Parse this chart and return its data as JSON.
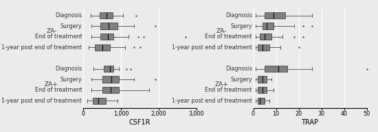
{
  "left_title": "CSF1R",
  "right_title": "TRAP",
  "left_xlim": [
    0,
    3000
  ],
  "left_xticks": [
    0,
    1000,
    2000,
    3000
  ],
  "left_xticklabels": [
    "0",
    "1,000",
    "2,000",
    "3,000"
  ],
  "right_xlim": [
    0,
    50
  ],
  "right_xticks": [
    0,
    10,
    20,
    30,
    40,
    50
  ],
  "right_xticklabels": [
    "0",
    "10",
    "20",
    "30",
    "40",
    "50"
  ],
  "timepoints": [
    "Diagnosis",
    "Surgery",
    "End of treatment",
    "1-year post end of treatment"
  ],
  "left_boxes": [
    {
      "q1": 430,
      "med": 620,
      "q3": 780,
      "whislo": 200,
      "whishi": 1050,
      "fliers": [
        1400
      ]
    },
    {
      "q1": 450,
      "med": 680,
      "q3": 900,
      "whislo": 220,
      "whishi": 1350,
      "fliers": [
        1900
      ]
    },
    {
      "q1": 450,
      "med": 650,
      "q3": 800,
      "whislo": 220,
      "whishi": 1200,
      "fliers": [
        1450,
        1600,
        2700
      ]
    },
    {
      "q1": 300,
      "med": 500,
      "q3": 700,
      "whislo": 150,
      "whishi": 1100,
      "fliers": [
        1350,
        1500
      ]
    },
    {
      "q1": 550,
      "med": 700,
      "q3": 800,
      "whislo": 280,
      "whishi": 950,
      "fliers": [
        1150,
        1250
      ]
    },
    {
      "q1": 500,
      "med": 750,
      "q3": 950,
      "whislo": 220,
      "whishi": 1350,
      "fliers": [
        1900
      ]
    },
    {
      "q1": 500,
      "med": 720,
      "q3": 950,
      "whislo": 220,
      "whishi": 1750,
      "fliers": []
    },
    {
      "q1": 250,
      "med": 400,
      "q3": 600,
      "whislo": 100,
      "whishi": 900,
      "fliers": []
    }
  ],
  "right_boxes": [
    {
      "q1": 5,
      "med": 9,
      "q3": 14,
      "whislo": 1,
      "whishi": 26,
      "fliers": []
    },
    {
      "q1": 4,
      "med": 6,
      "q3": 9,
      "whislo": 1,
      "whishi": 18,
      "fliers": [
        22,
        26
      ]
    },
    {
      "q1": 3,
      "med": 5,
      "q3": 8,
      "whislo": 1,
      "whishi": 13,
      "fliers": [
        18,
        22
      ]
    },
    {
      "q1": 2,
      "med": 4,
      "q3": 7,
      "whislo": 1,
      "whishi": 12,
      "fliers": [
        20
      ]
    },
    {
      "q1": 5,
      "med": 11,
      "q3": 15,
      "whislo": 1,
      "whishi": 26,
      "fliers": [
        50
      ]
    },
    {
      "q1": 2,
      "med": 4,
      "q3": 6,
      "whislo": 1,
      "whishi": 8,
      "fliers": []
    },
    {
      "q1": 2,
      "med": 4,
      "q3": 6,
      "whislo": 1,
      "whishi": 9,
      "fliers": []
    },
    {
      "q1": 2,
      "med": 3,
      "q3": 5,
      "whislo": 1,
      "whishi": 7,
      "fliers": []
    }
  ],
  "box_facecolor": "#808080",
  "box_edgecolor": "#444444",
  "median_color": "#111111",
  "flier_color": "#555555",
  "bg_color": "#ebebeb",
  "grid_color": "#ffffff",
  "label_fontsize": 5.8,
  "tick_fontsize": 5.8,
  "xlabel_fontsize": 7.0,
  "group_fontsize": 6.5
}
